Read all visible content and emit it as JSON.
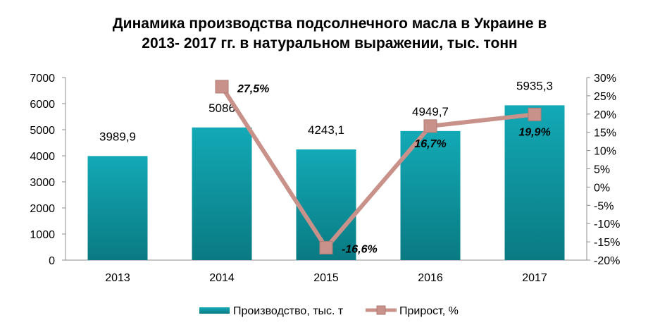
{
  "chart_data": {
    "type": "bar",
    "title_lines": [
      "Динамика производства подсолнечного масла в Украине в",
      "2013- 2017 гг. в натуральном выражении, тыс. тонн"
    ],
    "categories": [
      "2013",
      "2014",
      "2015",
      "2016",
      "2017"
    ],
    "series": [
      {
        "name": "Производство, тыс. т",
        "type": "bar",
        "axis": "left",
        "values": [
          3989.9,
          5086,
          4243.1,
          4949.7,
          5935.3
        ],
        "labels": [
          "3989,9",
          "5086",
          "4243,1",
          "4949,7",
          "5935,3"
        ],
        "color": "#1aa3b0"
      },
      {
        "name": "Прирост, %",
        "type": "line",
        "axis": "right",
        "points": [
          {
            "category": "2014",
            "value": 27.5,
            "label": "27,5%"
          },
          {
            "category": "2015",
            "value": -16.6,
            "label": "-16,6%"
          },
          {
            "category": "2016",
            "value": 16.7,
            "label": "16,7%"
          },
          {
            "category": "2017",
            "value": 19.9,
            "label": "19,9%"
          }
        ],
        "color": "#c8918a"
      }
    ],
    "y_left": {
      "min": 0,
      "max": 7000,
      "ticks": [
        "0",
        "1000",
        "2000",
        "3000",
        "4000",
        "5000",
        "6000",
        "7000"
      ]
    },
    "y_right": {
      "min": -20,
      "max": 30,
      "ticks": [
        "-20%",
        "-15%",
        "-10%",
        "-5%",
        "0%",
        "5%",
        "10%",
        "15%",
        "20%",
        "25%",
        "30%"
      ]
    },
    "grid": false,
    "legend_position": "bottom"
  }
}
